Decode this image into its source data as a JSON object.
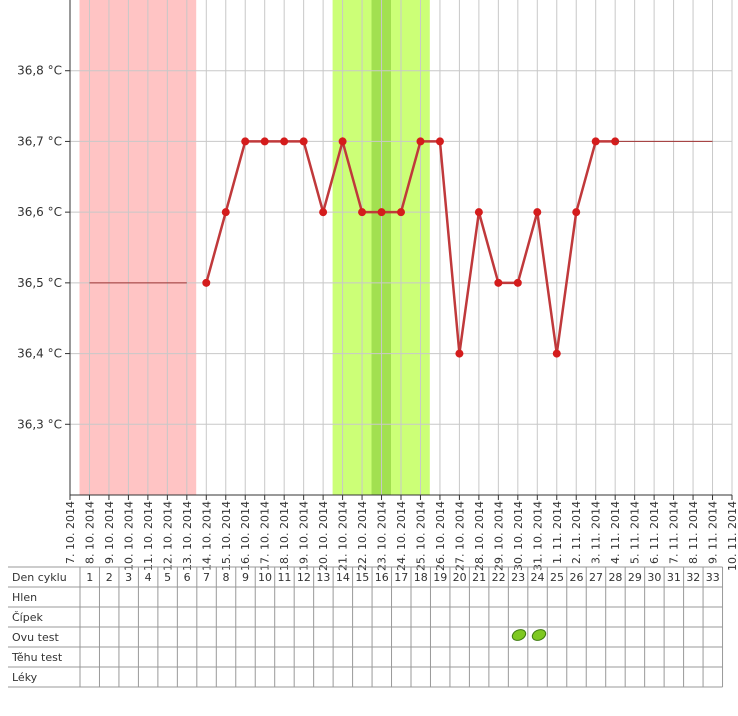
{
  "chart_data": {
    "type": "line",
    "x": [
      "7. 10. 2014",
      "8. 10. 2014",
      "9. 10. 2014",
      "10. 10. 2014",
      "11. 10. 2014",
      "12. 10. 2014",
      "13. 10. 2014",
      "14. 10. 2014",
      "15. 10. 2014",
      "16. 10. 2014",
      "17. 10. 2014",
      "18. 10. 2014",
      "19. 10. 2014",
      "20. 10. 2014",
      "21. 10. 2014",
      "22. 10. 2014",
      "23. 10. 2014",
      "24. 10. 2014",
      "25. 10. 2014",
      "26. 10. 2014",
      "27. 10. 2014",
      "28. 10. 2014",
      "29. 10. 2014",
      "30. 10. 2014",
      "31. 10. 2014",
      "1. 11. 2014",
      "2. 11. 2014",
      "3. 11. 2014",
      "4. 11. 2014",
      "5. 11. 2014",
      "6. 11. 2014",
      "7. 11. 2014",
      "8. 11. 2014",
      "9. 11. 2014",
      "10. 11. 2014"
    ],
    "series": [
      {
        "color": "#c0393b",
        "values": [
          null,
          null,
          null,
          null,
          null,
          null,
          null,
          36.5,
          36.6,
          36.7,
          36.7,
          36.7,
          36.7,
          36.6,
          36.7,
          36.6,
          36.6,
          36.6,
          36.7,
          36.7,
          36.4,
          36.6,
          36.5,
          36.5,
          36.6,
          36.4,
          36.6,
          36.7,
          36.7,
          null,
          null,
          null,
          null,
          null,
          null
        ]
      },
      {
        "color": "#a03030",
        "values": [
          null,
          36.5,
          36.5,
          36.5,
          36.5,
          36.5,
          36.5,
          null,
          null,
          null,
          null,
          null,
          null,
          null,
          null,
          null,
          null,
          null,
          null,
          null,
          null,
          null,
          null,
          null,
          null,
          null,
          null,
          null,
          36.7,
          36.7,
          36.7,
          36.7,
          36.7,
          36.7,
          null
        ]
      }
    ],
    "ylim": [
      36.2,
      36.9
    ],
    "yticks": [
      {
        "value": 36.3,
        "label": "36,3 °C"
      },
      {
        "value": 36.4,
        "label": "36,4 °C"
      },
      {
        "value": 36.5,
        "label": "36,5 °C"
      },
      {
        "value": 36.6,
        "label": "36,6 °C"
      },
      {
        "value": 36.7,
        "label": "36,7 °C"
      },
      {
        "value": 36.8,
        "label": "36,8 °C"
      }
    ],
    "grid": true
  },
  "table": {
    "row_labels": [
      "Den cyklu",
      "Hlen",
      "Čípek",
      "Ovu test",
      "Těhu test",
      "Léky"
    ],
    "cycle_days": [
      1,
      2,
      3,
      4,
      5,
      6,
      7,
      8,
      9,
      10,
      11,
      12,
      13,
      14,
      15,
      16,
      17,
      18,
      19,
      20,
      21,
      22,
      23,
      24,
      25,
      26,
      27,
      28,
      29,
      30,
      31,
      32,
      33
    ]
  }
}
